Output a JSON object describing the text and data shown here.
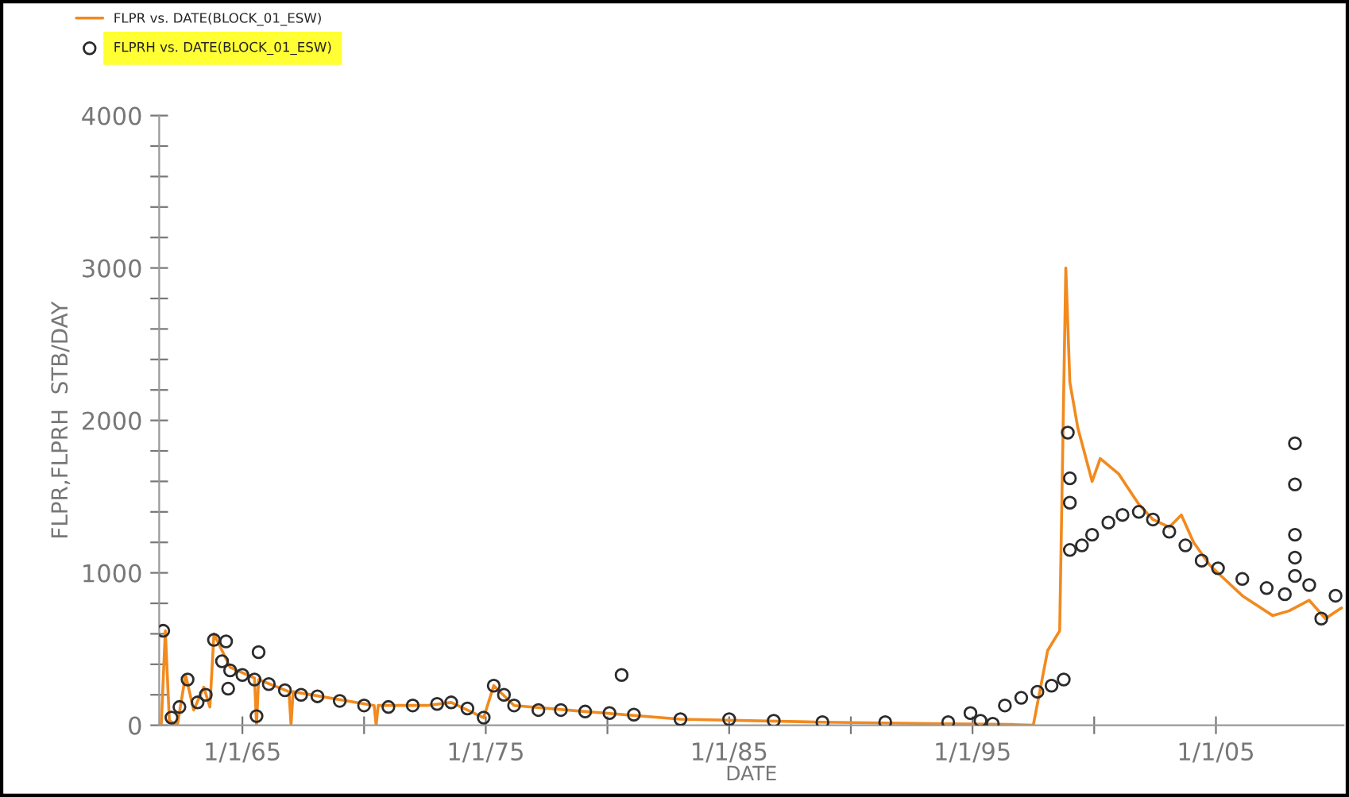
{
  "chart_data": {
    "type": "line",
    "xlabel": "DATE",
    "ylabel": "FLPR,FLPRH  STB/DAY",
    "legend": "top left",
    "xlim": [
      "1961-08",
      "2010-04"
    ],
    "ylim": [
      0,
      4000
    ],
    "xticks": [
      {
        "value": "1965-01-01",
        "label": "1/1/65"
      },
      {
        "value": "1970-01-01",
        "label": null
      },
      {
        "value": "1975-01-01",
        "label": "1/1/75"
      },
      {
        "value": "1980-01-01",
        "label": null
      },
      {
        "value": "1985-01-01",
        "label": "1/1/85"
      },
      {
        "value": "1990-01-01",
        "label": null
      },
      {
        "value": "1995-01-01",
        "label": "1/1/95"
      },
      {
        "value": "2000-01-01",
        "label": null
      },
      {
        "value": "2005-01-01",
        "label": "1/1/05"
      }
    ],
    "yticks": [
      0,
      {
        "value": 200,
        "label": null
      },
      {
        "value": 400,
        "label": null
      },
      {
        "value": 600,
        "label": null
      },
      {
        "value": 800,
        "label": null
      },
      1000,
      {
        "value": 1200,
        "label": null
      },
      {
        "value": 1400,
        "label": null
      },
      {
        "value": 1600,
        "label": null
      },
      {
        "value": 1800,
        "label": null
      },
      2000,
      {
        "value": 2200,
        "label": null
      },
      {
        "value": 2400,
        "label": null
      },
      {
        "value": 2600,
        "label": null
      },
      {
        "value": 2800,
        "label": null
      },
      3000,
      {
        "value": 3200,
        "label": null
      },
      {
        "value": 3400,
        "label": null
      },
      {
        "value": 3600,
        "label": null
      },
      {
        "value": 3800,
        "label": null
      },
      4000
    ],
    "series": [
      {
        "name": "FLPR vs. DATE(BLOCK_01_ESW)",
        "color": "#f28a1e",
        "marker": "none",
        "line_style": "solid",
        "x": [
          "1961-09",
          "1961-11",
          "1962-01",
          "1962-05",
          "1962-09",
          "1963-01",
          "1963-06",
          "1963-09",
          "1963-11",
          "1964-07",
          "1965-07",
          "1965-08",
          "1965-09",
          "1966-12",
          "1967-01",
          "1967-02",
          "1970-06",
          "1970-07",
          "1970-08",
          "1972-08",
          "1973-08",
          "1974-12",
          "1975-05",
          "1976-03",
          "1979-02",
          "1983-01",
          "1988-11",
          "1994-01",
          "1996-09",
          "1997-07",
          "1998-02",
          "1998-08",
          "1998-11",
          "1999-01",
          "1999-05",
          "1999-08",
          "1999-12",
          "2000-04",
          "2001-01",
          "2001-06",
          "2001-11",
          "2002-06",
          "2003-02",
          "2003-08",
          "2004-02",
          "2004-10",
          "2005-06",
          "2006-02",
          "2006-10",
          "2007-05",
          "2008-01",
          "2008-11",
          "2009-07",
          "2010-03"
        ],
        "values": [
          0,
          620,
          30,
          0,
          330,
          100,
          250,
          120,
          600,
          380,
          310,
          0,
          300,
          220,
          0,
          220,
          130,
          0,
          130,
          130,
          150,
          50,
          260,
          130,
          90,
          40,
          20,
          10,
          5,
          0,
          490,
          620,
          3000,
          2250,
          1950,
          1800,
          1600,
          1750,
          1650,
          1550,
          1450,
          1350,
          1300,
          1380,
          1200,
          1050,
          950,
          850,
          780,
          720,
          750,
          820,
          700,
          770
        ]
      },
      {
        "name": "FLPRH vs. DATE(BLOCK_01_ESW)",
        "type": "scatter",
        "color": "#2b2b2b",
        "marker": "circle",
        "x": [
          "1961-10",
          "1962-02",
          "1962-06",
          "1962-10",
          "1963-03",
          "1963-07",
          "1963-11",
          "1964-03",
          "1964-05",
          "1964-06",
          "1964-07",
          "1965-01",
          "1965-07",
          "1965-09",
          "1965-08",
          "1966-02",
          "1966-10",
          "1967-06",
          "1968-02",
          "1969-01",
          "1970-01",
          "1971-01",
          "1972-01",
          "1973-01",
          "1973-08",
          "1974-04",
          "1974-12",
          "1975-05",
          "1975-10",
          "1976-03",
          "1977-03",
          "1978-02",
          "1979-02",
          "1980-02",
          "1980-08",
          "1981-02",
          "1983-01",
          "1985-01",
          "1986-11",
          "1988-11",
          "1991-06",
          "1994-01",
          "1994-12",
          "1995-05",
          "1995-11",
          "1996-05",
          "1997-01",
          "1997-09",
          "1998-04",
          "1998-10",
          "1998-12",
          "1999-01",
          "1999-01",
          "1999-01",
          "1999-07",
          "1999-12",
          "2000-08",
          "2001-03",
          "2001-11",
          "2002-06",
          "2003-02",
          "2003-10",
          "2004-06",
          "2005-02",
          "2006-02",
          "2007-02",
          "2007-11",
          "2008-04",
          "2008-04",
          "2008-04",
          "2008-04",
          "2008-04",
          "2008-11",
          "2009-05",
          "2009-12"
        ],
        "values": [
          620,
          50,
          120,
          300,
          150,
          200,
          560,
          420,
          550,
          240,
          360,
          330,
          300,
          480,
          60,
          270,
          230,
          200,
          190,
          160,
          130,
          120,
          130,
          140,
          150,
          110,
          50,
          260,
          200,
          130,
          100,
          100,
          90,
          80,
          330,
          70,
          40,
          40,
          30,
          20,
          20,
          20,
          80,
          30,
          10,
          130,
          180,
          220,
          260,
          300,
          1920,
          1620,
          1460,
          1150,
          1180,
          1250,
          1330,
          1380,
          1400,
          1350,
          1270,
          1180,
          1080,
          1030,
          960,
          900,
          860,
          1850,
          1580,
          1250,
          1100,
          980,
          920,
          700,
          850
        ]
      }
    ]
  }
}
